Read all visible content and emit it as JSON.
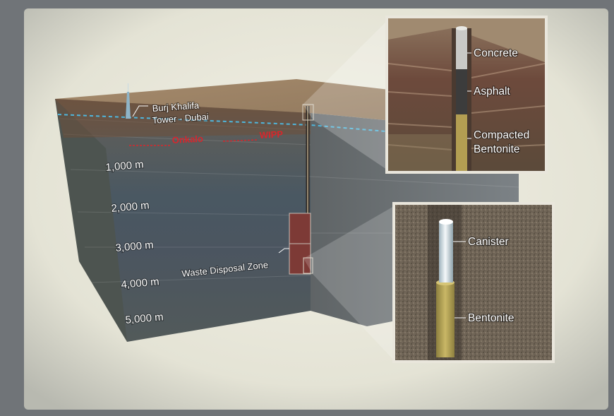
{
  "landmark": {
    "line1": "Burj Khalifa",
    "line2": "Tower - Dubai"
  },
  "facilities": [
    "Onkalo",
    "WIPP"
  ],
  "depth_markers": [
    "1,000  m",
    "2,000  m",
    "3,000  m",
    "4,000  m",
    "5,000  m"
  ],
  "zone_label": "Waste Disposal Zone",
  "seal_inset": {
    "labels": [
      "Concrete",
      "Asphalt",
      "Compacted",
      "Bentonite"
    ]
  },
  "canister_inset": {
    "labels": [
      "Canister",
      "Bentonite"
    ]
  },
  "colors": {
    "onkalo_wipp_text": "#d8262c",
    "zone_fill": "#7d3a36",
    "water_line": "#4fb6dc"
  }
}
